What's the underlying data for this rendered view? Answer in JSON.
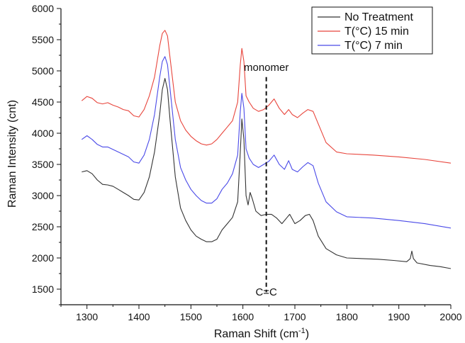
{
  "chart_data": {
    "type": "line",
    "xlabel": "Raman Shift (cm",
    "xlabel_sup": "-1",
    "xlabel_end": ")",
    "ylabel": "Raman Intensity (cnt)",
    "xlim": [
      1250,
      2000
    ],
    "ylim": [
      1250,
      6000
    ],
    "x_ticks": [
      1300,
      1400,
      1500,
      1600,
      1700,
      1800,
      1900,
      2000
    ],
    "y_ticks": [
      1500,
      2000,
      2500,
      3000,
      3500,
      4000,
      4500,
      5000,
      5500,
      6000
    ],
    "grid": false,
    "legend_position": "top-right",
    "annotations": [
      {
        "text": "monomer",
        "x": 1645,
        "y": 5000
      },
      {
        "text": "C=C",
        "x": 1645,
        "y": 1400
      }
    ],
    "marker_line": {
      "x": 1645,
      "y_from": 1450,
      "y_to": 4900,
      "style": "dashed"
    },
    "series": [
      {
        "name": "No Treatment",
        "color": "#333333",
        "points": [
          [
            1290,
            3380
          ],
          [
            1300,
            3400
          ],
          [
            1310,
            3350
          ],
          [
            1320,
            3250
          ],
          [
            1330,
            3180
          ],
          [
            1340,
            3170
          ],
          [
            1350,
            3150
          ],
          [
            1360,
            3100
          ],
          [
            1370,
            3050
          ],
          [
            1380,
            3000
          ],
          [
            1390,
            2940
          ],
          [
            1400,
            2930
          ],
          [
            1410,
            3050
          ],
          [
            1420,
            3300
          ],
          [
            1430,
            3700
          ],
          [
            1440,
            4300
          ],
          [
            1445,
            4700
          ],
          [
            1450,
            4880
          ],
          [
            1455,
            4700
          ],
          [
            1460,
            4200
          ],
          [
            1470,
            3300
          ],
          [
            1480,
            2800
          ],
          [
            1490,
            2600
          ],
          [
            1500,
            2450
          ],
          [
            1510,
            2350
          ],
          [
            1520,
            2300
          ],
          [
            1530,
            2260
          ],
          [
            1540,
            2260
          ],
          [
            1550,
            2300
          ],
          [
            1560,
            2450
          ],
          [
            1570,
            2550
          ],
          [
            1580,
            2650
          ],
          [
            1590,
            2900
          ],
          [
            1595,
            3700
          ],
          [
            1598,
            4230
          ],
          [
            1602,
            3900
          ],
          [
            1606,
            3000
          ],
          [
            1610,
            2850
          ],
          [
            1614,
            3050
          ],
          [
            1618,
            2950
          ],
          [
            1625,
            2750
          ],
          [
            1635,
            2680
          ],
          [
            1645,
            2700
          ],
          [
            1655,
            2700
          ],
          [
            1665,
            2640
          ],
          [
            1675,
            2550
          ],
          [
            1685,
            2650
          ],
          [
            1690,
            2700
          ],
          [
            1700,
            2550
          ],
          [
            1710,
            2600
          ],
          [
            1720,
            2680
          ],
          [
            1728,
            2700
          ],
          [
            1735,
            2600
          ],
          [
            1745,
            2350
          ],
          [
            1760,
            2150
          ],
          [
            1780,
            2050
          ],
          [
            1800,
            2000
          ],
          [
            1830,
            1990
          ],
          [
            1860,
            1980
          ],
          [
            1890,
            1960
          ],
          [
            1915,
            1940
          ],
          [
            1922,
            1990
          ],
          [
            1925,
            2110
          ],
          [
            1928,
            1990
          ],
          [
            1935,
            1920
          ],
          [
            1960,
            1880
          ],
          [
            1980,
            1860
          ],
          [
            2000,
            1830
          ]
        ]
      },
      {
        "name": "T(°C) 15 min",
        "color": "#e8453c",
        "points": [
          [
            1290,
            4520
          ],
          [
            1300,
            4590
          ],
          [
            1310,
            4560
          ],
          [
            1320,
            4490
          ],
          [
            1330,
            4470
          ],
          [
            1340,
            4490
          ],
          [
            1350,
            4450
          ],
          [
            1360,
            4420
          ],
          [
            1370,
            4380
          ],
          [
            1380,
            4360
          ],
          [
            1390,
            4280
          ],
          [
            1400,
            4260
          ],
          [
            1410,
            4380
          ],
          [
            1420,
            4600
          ],
          [
            1430,
            4900
          ],
          [
            1440,
            5400
          ],
          [
            1445,
            5600
          ],
          [
            1450,
            5650
          ],
          [
            1455,
            5560
          ],
          [
            1460,
            5200
          ],
          [
            1470,
            4500
          ],
          [
            1480,
            4200
          ],
          [
            1490,
            4050
          ],
          [
            1500,
            3950
          ],
          [
            1510,
            3880
          ],
          [
            1520,
            3830
          ],
          [
            1530,
            3810
          ],
          [
            1540,
            3830
          ],
          [
            1550,
            3900
          ],
          [
            1560,
            4000
          ],
          [
            1570,
            4100
          ],
          [
            1580,
            4200
          ],
          [
            1590,
            4500
          ],
          [
            1595,
            5100
          ],
          [
            1598,
            5360
          ],
          [
            1602,
            5150
          ],
          [
            1606,
            4600
          ],
          [
            1612,
            4500
          ],
          [
            1620,
            4400
          ],
          [
            1630,
            4350
          ],
          [
            1640,
            4380
          ],
          [
            1650,
            4450
          ],
          [
            1660,
            4550
          ],
          [
            1670,
            4400
          ],
          [
            1680,
            4300
          ],
          [
            1688,
            4380
          ],
          [
            1695,
            4300
          ],
          [
            1705,
            4250
          ],
          [
            1715,
            4320
          ],
          [
            1725,
            4380
          ],
          [
            1735,
            4350
          ],
          [
            1745,
            4150
          ],
          [
            1760,
            3850
          ],
          [
            1780,
            3700
          ],
          [
            1800,
            3670
          ],
          [
            1850,
            3650
          ],
          [
            1900,
            3620
          ],
          [
            1950,
            3580
          ],
          [
            2000,
            3520
          ]
        ]
      },
      {
        "name": "T(°C) 7 min",
        "color": "#4a4ae8",
        "points": [
          [
            1290,
            3900
          ],
          [
            1300,
            3960
          ],
          [
            1310,
            3900
          ],
          [
            1320,
            3820
          ],
          [
            1330,
            3780
          ],
          [
            1340,
            3780
          ],
          [
            1350,
            3740
          ],
          [
            1360,
            3700
          ],
          [
            1370,
            3660
          ],
          [
            1380,
            3620
          ],
          [
            1390,
            3540
          ],
          [
            1400,
            3520
          ],
          [
            1410,
            3650
          ],
          [
            1420,
            3900
          ],
          [
            1430,
            4300
          ],
          [
            1440,
            4900
          ],
          [
            1445,
            5150
          ],
          [
            1450,
            5230
          ],
          [
            1455,
            5100
          ],
          [
            1460,
            4700
          ],
          [
            1470,
            3900
          ],
          [
            1480,
            3450
          ],
          [
            1490,
            3250
          ],
          [
            1500,
            3100
          ],
          [
            1510,
            3000
          ],
          [
            1520,
            2920
          ],
          [
            1530,
            2880
          ],
          [
            1540,
            2880
          ],
          [
            1550,
            2950
          ],
          [
            1560,
            3100
          ],
          [
            1570,
            3200
          ],
          [
            1580,
            3350
          ],
          [
            1590,
            3650
          ],
          [
            1595,
            4350
          ],
          [
            1598,
            4640
          ],
          [
            1602,
            4400
          ],
          [
            1606,
            3750
          ],
          [
            1612,
            3600
          ],
          [
            1620,
            3500
          ],
          [
            1630,
            3450
          ],
          [
            1640,
            3500
          ],
          [
            1650,
            3550
          ],
          [
            1660,
            3650
          ],
          [
            1670,
            3500
          ],
          [
            1680,
            3420
          ],
          [
            1688,
            3560
          ],
          [
            1695,
            3420
          ],
          [
            1705,
            3380
          ],
          [
            1715,
            3460
          ],
          [
            1725,
            3530
          ],
          [
            1735,
            3480
          ],
          [
            1745,
            3200
          ],
          [
            1760,
            2900
          ],
          [
            1780,
            2740
          ],
          [
            1800,
            2660
          ],
          [
            1850,
            2640
          ],
          [
            1900,
            2600
          ],
          [
            1950,
            2550
          ],
          [
            2000,
            2480
          ]
        ]
      }
    ]
  }
}
